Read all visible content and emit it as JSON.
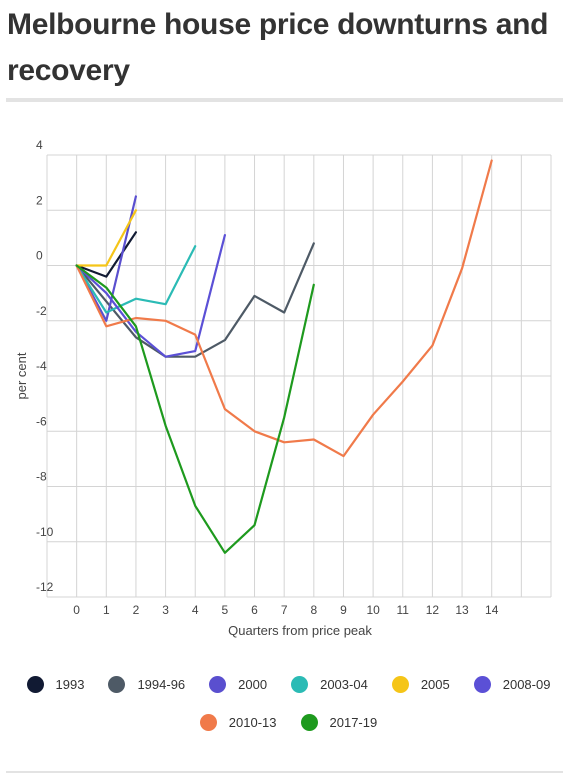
{
  "title": "Melbourne house price downturns and recovery",
  "chart_data": {
    "type": "line",
    "xlabel": "Quarters from price peak",
    "ylabel": "per cent",
    "x_ticks": [
      0,
      1,
      2,
      3,
      4,
      5,
      6,
      7,
      8,
      9,
      10,
      11,
      12,
      13,
      14
    ],
    "y_ticks": [
      4,
      2,
      0,
      -2,
      -4,
      -6,
      -8,
      -10,
      -12
    ],
    "xlim": [
      -1,
      16
    ],
    "ylim": [
      -12,
      4
    ],
    "grid": true,
    "legend_position": "bottom",
    "series": [
      {
        "name": "1993",
        "color": "#111a33",
        "x": [
          0,
          1,
          2
        ],
        "y": [
          0,
          -0.4,
          1.2
        ]
      },
      {
        "name": "1994-96",
        "color": "#4e5a66",
        "x": [
          0,
          1,
          2,
          3,
          4,
          5,
          6,
          7,
          8
        ],
        "y": [
          0,
          -1.3,
          -2.6,
          -3.3,
          -3.3,
          -2.7,
          -1.1,
          -1.7,
          0.8
        ]
      },
      {
        "name": "2000",
        "color": "#5a4fcf",
        "x": [
          0,
          1,
          2
        ],
        "y": [
          0,
          -2.0,
          2.5
        ]
      },
      {
        "name": "2003-04",
        "color": "#2bbbb5",
        "x": [
          0,
          1,
          2,
          3,
          4
        ],
        "y": [
          0,
          -1.7,
          -1.2,
          -1.4,
          0.7
        ]
      },
      {
        "name": "2005",
        "color": "#f5c518",
        "x": [
          0,
          1,
          2
        ],
        "y": [
          0,
          0,
          2.0
        ]
      },
      {
        "name": "2008-09",
        "color": "#5b50d6",
        "x": [
          0,
          1,
          2,
          3,
          4,
          5
        ],
        "y": [
          0,
          -1.0,
          -2.4,
          -3.3,
          -3.1,
          1.1
        ]
      },
      {
        "name": "2010-13",
        "color": "#f07a4a",
        "x": [
          0,
          1,
          2,
          3,
          4,
          5,
          6,
          7,
          8,
          9,
          10,
          11,
          12,
          13,
          14
        ],
        "y": [
          0,
          -2.2,
          -1.9,
          -2.0,
          -2.5,
          -5.2,
          -6.0,
          -6.4,
          -6.3,
          -6.9,
          -5.4,
          -4.2,
          -2.9,
          -0.1,
          3.8
        ]
      },
      {
        "name": "2017-19",
        "color": "#1e9a1e",
        "x": [
          0,
          1,
          2,
          3,
          4,
          5,
          6,
          7,
          8
        ],
        "y": [
          0,
          -0.8,
          -2.2,
          -5.8,
          -8.7,
          -10.4,
          -9.4,
          -5.5,
          -0.7
        ]
      }
    ]
  },
  "legend": {
    "row1": [
      "1993",
      "1994-96",
      "2000",
      "2003-04",
      "2005",
      "2008-09"
    ],
    "row2": [
      "2010-13",
      "2017-19"
    ]
  }
}
